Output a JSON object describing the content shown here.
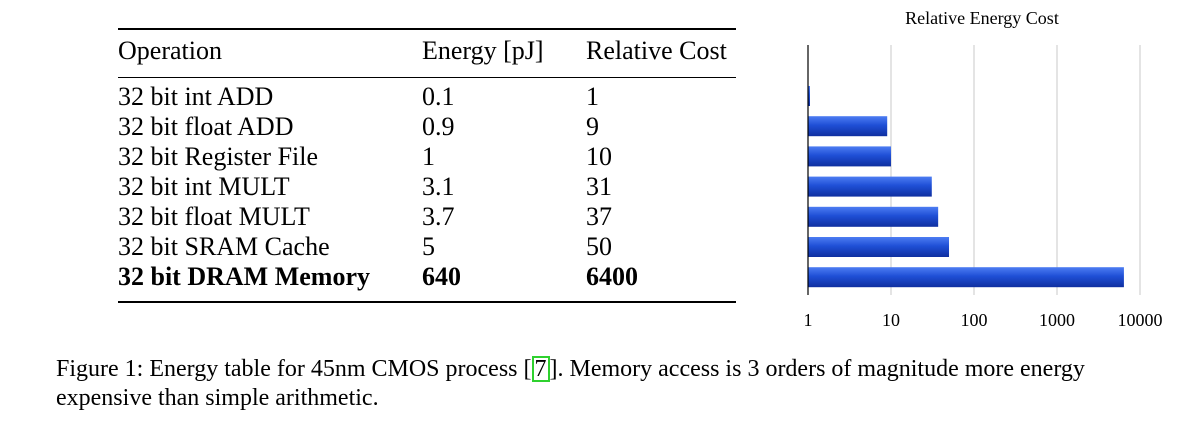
{
  "table": {
    "headers": [
      "Operation",
      "Energy [pJ]",
      "Relative Cost"
    ],
    "rows": [
      {
        "operation": "32 bit int ADD",
        "energy": "0.1",
        "relative": "1",
        "bold": false
      },
      {
        "operation": "32 bit float ADD",
        "energy": "0.9",
        "relative": "9",
        "bold": false
      },
      {
        "operation": "32 bit Register File",
        "energy": "1",
        "relative": "10",
        "bold": false
      },
      {
        "operation": "32 bit int MULT",
        "energy": "3.1",
        "relative": "31",
        "bold": false
      },
      {
        "operation": "32 bit float MULT",
        "energy": "3.7",
        "relative": "37",
        "bold": false
      },
      {
        "operation": "32 bit SRAM Cache",
        "energy": "5",
        "relative": "50",
        "bold": false
      },
      {
        "operation": "32 bit DRAM Memory",
        "energy": "640",
        "relative": "6400",
        "bold": true
      }
    ]
  },
  "chart_data": {
    "type": "bar",
    "orientation": "horizontal",
    "title": "Relative Energy Cost",
    "xscale": "log",
    "xlim": [
      1,
      10000
    ],
    "xticks": [
      "1",
      "10",
      "100",
      "1000",
      "10000"
    ],
    "values": [
      1,
      9,
      10,
      31,
      37,
      50,
      6400
    ],
    "grid": true,
    "bar_color": "#1f4fd6"
  },
  "caption": {
    "before": "Figure 1: Energy table for 45nm CMOS process [",
    "cite": "7",
    "after": "]. Memory access is 3 orders of magnitude more energy expensive than simple arithmetic."
  }
}
